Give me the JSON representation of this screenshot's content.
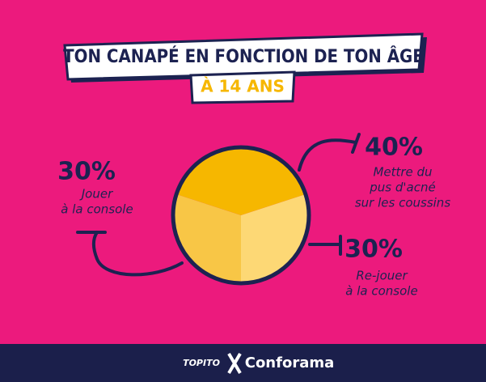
{
  "chart_data": {
    "type": "pie",
    "title": "TON CANAPÉ EN FONCTION DE TON ÂGE",
    "subtitle": "À 14 ANS",
    "values": [
      40,
      30,
      30
    ],
    "value_labels": [
      "40%",
      "30%",
      "30%"
    ],
    "labels": [
      [
        "Mettre du",
        "pus d'acné",
        "sur les coussins"
      ],
      [
        "Re-jouer",
        "à la console"
      ],
      [
        "Jouer",
        "à la console"
      ]
    ],
    "colors": [
      "#f6b700",
      "#fdd875",
      "#f8c646"
    ]
  },
  "footer": {
    "brands": [
      "TOPITO",
      "Conforama"
    ]
  }
}
